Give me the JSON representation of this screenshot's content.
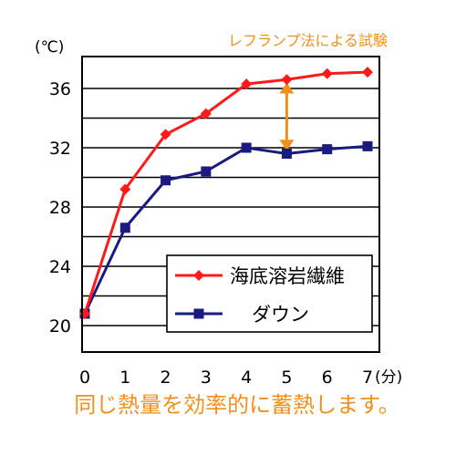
{
  "chart_data": {
    "type": "line",
    "title": "レフランプ法による試験",
    "ylabel": "(℃)",
    "xunit": "(分)",
    "xlim": [
      0,
      7
    ],
    "ylim": [
      20,
      37
    ],
    "x": [
      0,
      1,
      2,
      3,
      4,
      5,
      6,
      7
    ],
    "xticks": [
      "0",
      "1",
      "2",
      "3",
      "4",
      "5",
      "6",
      "7"
    ],
    "yticks": [
      20,
      24,
      28,
      32,
      36
    ],
    "gridlines": [
      20,
      22,
      24,
      26,
      28,
      30,
      32,
      34,
      36
    ],
    "grid": true,
    "legend_position": "bottom-right",
    "series": [
      {
        "name": "海底溶岩繊維",
        "color": "#ff1a1a",
        "marker": "diamond",
        "values": [
          20.8,
          29.2,
          32.9,
          34.3,
          36.3,
          36.6,
          37.0,
          37.1
        ]
      },
      {
        "name": "ダウン",
        "color": "#1a1a80",
        "marker": "square",
        "values": [
          20.8,
          26.6,
          29.8,
          30.4,
          32.0,
          31.6,
          31.9,
          32.1
        ]
      }
    ],
    "annotation": {
      "type": "double-arrow",
      "x": 5,
      "from": 31.8,
      "to": 36.4,
      "color": "#f2901c"
    }
  },
  "caption": "同じ熱量を効率的に蓄熱します。",
  "colors": {
    "title": "#f2901c",
    "caption": "#f2901c",
    "frame": "#000000"
  }
}
